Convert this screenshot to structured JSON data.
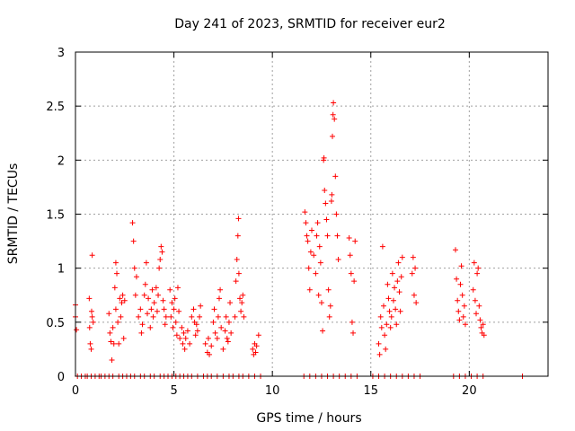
{
  "chart_data": {
    "type": "scatter",
    "title": "Day 241 of 2023, SRMTID for receiver eur2",
    "xlabel": "GPS time / hours",
    "ylabel": "SRMTID / TECUs",
    "xlim": [
      0,
      24
    ],
    "ylim": [
      0,
      3
    ],
    "x_ticks": [
      "0",
      "5",
      "10",
      "15",
      "20"
    ],
    "y_ticks": [
      "0",
      "0.5",
      "1",
      "1.5",
      "2",
      "2.5",
      "3"
    ],
    "grid": true,
    "marker": "+",
    "series_color": "#ff0000",
    "series": [
      {
        "name": "SRMTID",
        "points": [
          [
            0.0,
            0.66
          ],
          [
            0.0,
            0.55
          ],
          [
            0.05,
            0.43
          ],
          [
            0.7,
            0.72
          ],
          [
            0.72,
            0.45
          ],
          [
            0.75,
            0.3
          ],
          [
            0.8,
            0.25
          ],
          [
            0.82,
            0.6
          ],
          [
            0.85,
            1.12
          ],
          [
            0.85,
            0.55
          ],
          [
            0.9,
            0.5
          ],
          [
            1.7,
            0.58
          ],
          [
            1.75,
            0.4
          ],
          [
            1.8,
            0.32
          ],
          [
            1.85,
            0.15
          ],
          [
            1.9,
            0.45
          ],
          [
            1.95,
            0.3
          ],
          [
            2.0,
            0.82
          ],
          [
            2.05,
            1.05
          ],
          [
            2.05,
            0.62
          ],
          [
            2.1,
            0.95
          ],
          [
            2.15,
            0.5
          ],
          [
            2.2,
            0.3
          ],
          [
            2.25,
            0.72
          ],
          [
            2.3,
            0.55
          ],
          [
            2.35,
            0.68
          ],
          [
            2.4,
            0.75
          ],
          [
            2.45,
            0.35
          ],
          [
            2.5,
            0.7
          ],
          [
            2.9,
            1.42
          ],
          [
            2.95,
            1.25
          ],
          [
            3.0,
            1.0
          ],
          [
            3.05,
            0.75
          ],
          [
            3.1,
            0.92
          ],
          [
            3.2,
            0.55
          ],
          [
            3.3,
            0.62
          ],
          [
            3.35,
            0.4
          ],
          [
            3.4,
            0.48
          ],
          [
            3.5,
            0.75
          ],
          [
            3.55,
            0.85
          ],
          [
            3.6,
            1.05
          ],
          [
            3.65,
            0.58
          ],
          [
            3.7,
            0.72
          ],
          [
            3.8,
            0.45
          ],
          [
            3.85,
            0.62
          ],
          [
            3.9,
            0.8
          ],
          [
            3.95,
            0.55
          ],
          [
            4.0,
            0.68
          ],
          [
            4.1,
            0.82
          ],
          [
            4.15,
            0.6
          ],
          [
            4.2,
            0.75
          ],
          [
            4.25,
            1.0
          ],
          [
            4.3,
            1.08
          ],
          [
            4.35,
            1.2
          ],
          [
            4.4,
            1.15
          ],
          [
            4.45,
            0.7
          ],
          [
            4.5,
            0.62
          ],
          [
            4.55,
            0.48
          ],
          [
            4.6,
            0.55
          ],
          [
            4.8,
            0.8
          ],
          [
            4.85,
            0.55
          ],
          [
            4.9,
            0.68
          ],
          [
            4.95,
            0.45
          ],
          [
            5.0,
            0.62
          ],
          [
            5.05,
            0.72
          ],
          [
            5.1,
            0.5
          ],
          [
            5.15,
            0.38
          ],
          [
            5.2,
            0.82
          ],
          [
            5.25,
            0.6
          ],
          [
            5.3,
            0.35
          ],
          [
            5.4,
            0.45
          ],
          [
            5.45,
            0.3
          ],
          [
            5.5,
            0.4
          ],
          [
            5.55,
            0.25
          ],
          [
            5.6,
            0.35
          ],
          [
            5.7,
            0.42
          ],
          [
            5.8,
            0.3
          ],
          [
            5.9,
            0.55
          ],
          [
            6.0,
            0.62
          ],
          [
            6.05,
            0.5
          ],
          [
            6.1,
            0.38
          ],
          [
            6.15,
            0.48
          ],
          [
            6.2,
            0.42
          ],
          [
            6.3,
            0.55
          ],
          [
            6.35,
            0.65
          ],
          [
            6.6,
            0.3
          ],
          [
            6.7,
            0.22
          ],
          [
            6.75,
            0.35
          ],
          [
            6.8,
            0.2
          ],
          [
            6.9,
            0.28
          ],
          [
            7.0,
            0.5
          ],
          [
            7.05,
            0.62
          ],
          [
            7.1,
            0.4
          ],
          [
            7.2,
            0.35
          ],
          [
            7.25,
            0.55
          ],
          [
            7.3,
            0.72
          ],
          [
            7.35,
            0.8
          ],
          [
            7.4,
            0.45
          ],
          [
            7.5,
            0.25
          ],
          [
            7.6,
            0.42
          ],
          [
            7.65,
            0.55
          ],
          [
            7.7,
            0.35
          ],
          [
            7.75,
            0.32
          ],
          [
            7.8,
            0.5
          ],
          [
            7.85,
            0.68
          ],
          [
            7.9,
            0.4
          ],
          [
            8.1,
            0.55
          ],
          [
            8.15,
            0.88
          ],
          [
            8.2,
            1.08
          ],
          [
            8.25,
            1.3
          ],
          [
            8.28,
            1.46
          ],
          [
            8.3,
            0.95
          ],
          [
            8.35,
            0.72
          ],
          [
            8.4,
            0.6
          ],
          [
            8.45,
            0.68
          ],
          [
            8.5,
            0.75
          ],
          [
            8.55,
            0.55
          ],
          [
            9.0,
            0.25
          ],
          [
            9.05,
            0.2
          ],
          [
            9.1,
            0.3
          ],
          [
            9.15,
            0.22
          ],
          [
            9.2,
            0.28
          ],
          [
            9.3,
            0.38
          ],
          [
            11.65,
            1.52
          ],
          [
            11.7,
            1.42
          ],
          [
            11.75,
            1.3
          ],
          [
            11.8,
            1.25
          ],
          [
            11.85,
            1.0
          ],
          [
            11.9,
            0.8
          ],
          [
            11.95,
            1.15
          ],
          [
            12.0,
            1.35
          ],
          [
            12.1,
            1.12
          ],
          [
            12.2,
            0.95
          ],
          [
            12.25,
            1.3
          ],
          [
            12.3,
            1.42
          ],
          [
            12.35,
            0.75
          ],
          [
            12.4,
            1.2
          ],
          [
            12.45,
            1.05
          ],
          [
            12.5,
            0.68
          ],
          [
            12.6,
            2.0
          ],
          [
            12.62,
            2.02
          ],
          [
            12.65,
            1.72
          ],
          [
            12.7,
            1.6
          ],
          [
            12.75,
            1.45
          ],
          [
            12.8,
            1.3
          ],
          [
            12.85,
            0.8
          ],
          [
            12.9,
            0.55
          ],
          [
            12.95,
            0.65
          ],
          [
            13.0,
            1.62
          ],
          [
            13.02,
            1.68
          ],
          [
            13.05,
            2.22
          ],
          [
            13.08,
            2.42
          ],
          [
            13.1,
            2.53
          ],
          [
            13.15,
            2.38
          ],
          [
            13.2,
            1.85
          ],
          [
            13.25,
            1.5
          ],
          [
            13.3,
            1.3
          ],
          [
            13.35,
            1.08
          ],
          [
            12.55,
            0.42
          ],
          [
            13.9,
            1.28
          ],
          [
            13.95,
            1.12
          ],
          [
            14.0,
            0.95
          ],
          [
            14.05,
            0.5
          ],
          [
            14.1,
            0.4
          ],
          [
            14.15,
            0.88
          ],
          [
            14.2,
            1.25
          ],
          [
            15.4,
            0.3
          ],
          [
            15.45,
            0.2
          ],
          [
            15.5,
            0.55
          ],
          [
            15.55,
            0.45
          ],
          [
            15.6,
            1.2
          ],
          [
            15.65,
            0.65
          ],
          [
            15.7,
            0.38
          ],
          [
            15.75,
            0.25
          ],
          [
            15.8,
            0.48
          ],
          [
            15.85,
            0.85
          ],
          [
            15.9,
            0.72
          ],
          [
            15.95,
            0.6
          ],
          [
            16.0,
            0.45
          ],
          [
            16.05,
            0.55
          ],
          [
            16.1,
            0.95
          ],
          [
            16.15,
            0.7
          ],
          [
            16.2,
            0.82
          ],
          [
            16.25,
            0.62
          ],
          [
            16.3,
            0.48
          ],
          [
            16.35,
            0.88
          ],
          [
            16.4,
            1.05
          ],
          [
            16.45,
            0.78
          ],
          [
            16.5,
            0.6
          ],
          [
            16.55,
            0.92
          ],
          [
            16.6,
            1.1
          ],
          [
            17.1,
            0.95
          ],
          [
            17.15,
            1.1
          ],
          [
            17.2,
            0.75
          ],
          [
            17.25,
            1.0
          ],
          [
            17.3,
            0.68
          ],
          [
            19.3,
            1.17
          ],
          [
            19.35,
            0.9
          ],
          [
            19.4,
            0.7
          ],
          [
            19.45,
            0.6
          ],
          [
            19.5,
            0.52
          ],
          [
            19.55,
            0.85
          ],
          [
            19.6,
            1.02
          ],
          [
            19.65,
            0.75
          ],
          [
            19.7,
            0.55
          ],
          [
            19.75,
            0.65
          ],
          [
            19.8,
            0.48
          ],
          [
            20.2,
            0.8
          ],
          [
            20.25,
            1.05
          ],
          [
            20.3,
            0.7
          ],
          [
            20.35,
            0.58
          ],
          [
            20.4,
            0.95
          ],
          [
            20.45,
            1.0
          ],
          [
            20.5,
            0.65
          ],
          [
            20.55,
            0.52
          ],
          [
            20.6,
            0.45
          ],
          [
            20.65,
            0.4
          ],
          [
            20.7,
            0.48
          ],
          [
            20.75,
            0.38
          ]
        ]
      }
    ],
    "zero_points_x": [
      0.1,
      0.3,
      0.5,
      0.6,
      0.8,
      1.0,
      1.2,
      1.3,
      1.5,
      1.7,
      1.9,
      2.2,
      2.4,
      2.6,
      2.8,
      3.0,
      3.3,
      3.5,
      3.8,
      4.0,
      4.3,
      4.5,
      4.7,
      4.9,
      5.1,
      5.3,
      5.5,
      5.7,
      5.9,
      6.2,
      6.5,
      6.7,
      6.9,
      7.2,
      7.5,
      7.8,
      8.0,
      8.3,
      8.5,
      8.8,
      9.1,
      9.4,
      11.6,
      11.9,
      12.2,
      12.5,
      12.8,
      13.1,
      13.4,
      13.7,
      14.0,
      14.3,
      15.1,
      15.4,
      15.7,
      16.0,
      16.3,
      16.6,
      16.9,
      17.2,
      17.5,
      19.2,
      19.5,
      19.8,
      20.1,
      20.4,
      20.7,
      22.7
    ]
  }
}
